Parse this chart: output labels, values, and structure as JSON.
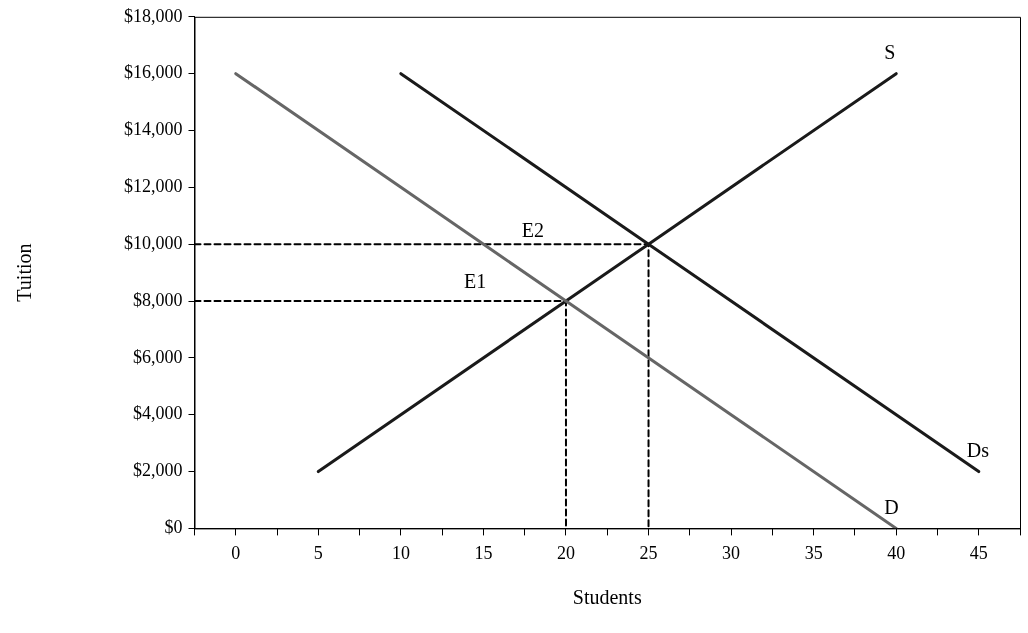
{
  "chart_data": {
    "type": "line",
    "xlabel": "Students",
    "ylabel": "Tuition",
    "xlim": [
      -2.5,
      47.5
    ],
    "xticks": [
      {
        "value": -2.5,
        "label": null
      },
      0,
      {
        "value": 2.5,
        "label": null
      },
      5,
      {
        "value": 7.5,
        "label": null
      },
      10,
      {
        "value": 12.5,
        "label": null
      },
      15,
      {
        "value": 17.5,
        "label": null
      },
      20,
      {
        "value": 22.5,
        "label": null
      },
      25,
      {
        "value": 27.5,
        "label": null
      },
      30,
      {
        "value": 32.5,
        "label": null
      },
      35,
      {
        "value": 37.5,
        "label": null
      },
      40,
      {
        "value": 42.5,
        "label": null
      },
      45,
      {
        "value": 47.5,
        "label": null
      }
    ],
    "ylim": [
      0,
      18000
    ],
    "yticks": [
      {
        "value": 0,
        "label": "$0"
      },
      {
        "value": 2000,
        "label": "$2,000"
      },
      {
        "value": 4000,
        "label": "$4,000"
      },
      {
        "value": 6000,
        "label": "$6,000"
      },
      {
        "value": 8000,
        "label": "$8,000"
      },
      {
        "value": 10000,
        "label": "$10,000"
      },
      {
        "value": 12000,
        "label": "$12,000"
      },
      {
        "value": 14000,
        "label": "$14,000"
      },
      {
        "value": 16000,
        "label": "$16,000"
      },
      {
        "value": 18000,
        "label": "$18,000"
      }
    ],
    "grid": false,
    "legend": false,
    "marker": "none",
    "line_style": "solid",
    "series": [
      {
        "name": "D",
        "color": "#666666",
        "x": [
          0,
          10,
          20,
          30,
          40
        ],
        "values": [
          16000,
          12000,
          8000,
          4000,
          0
        ]
      },
      {
        "name": "S",
        "color": "#1a1a1a",
        "x": [
          5,
          20,
          25,
          40
        ],
        "values": [
          2000,
          8000,
          10000,
          16000
        ]
      },
      {
        "name": "Ds",
        "color": "#1a1a1a",
        "x": [
          10,
          25,
          45
        ],
        "values": [
          16000,
          10000,
          2000
        ]
      },
      {
        "color": "#000000",
        "line_style": "dashed",
        "x": [
          -2.5,
          20,
          20
        ],
        "values": [
          8000,
          8000,
          0
        ]
      },
      {
        "color": "#000000",
        "line_style": "dashed",
        "x": [
          -2.5,
          25,
          25
        ],
        "values": [
          10000,
          10000,
          0
        ]
      }
    ],
    "annotations": [
      "E1",
      "E2"
    ]
  }
}
